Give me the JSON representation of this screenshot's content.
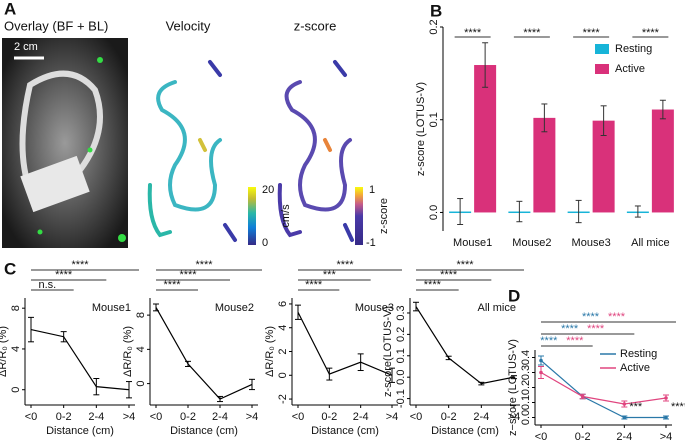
{
  "panel_labels": [
    "A",
    "B",
    "C",
    "D"
  ],
  "images": {
    "titles": [
      "Overlay (BF + BL)",
      "Velocity",
      "z-score"
    ],
    "scale_bar": "2 cm",
    "colorbars": [
      {
        "max": 20,
        "min": 0,
        "label": "cm/s"
      },
      {
        "max": 1,
        "min": -1,
        "label": "z-score"
      }
    ]
  },
  "chart_data": [
    {
      "type": "bar",
      "ylabel": "z-score (LOTUS-V)",
      "categories": [
        "Mouse1",
        "Mouse2",
        "Mouse3",
        "All mice"
      ],
      "series": [
        {
          "name": "Resting",
          "color": "#17b4d8",
          "values": [
            0.001,
            0.001,
            0.001,
            0.001
          ],
          "errors": [
            0.014,
            0.011,
            0.012,
            0.006
          ]
        },
        {
          "name": "Active",
          "color": "#d9317a",
          "values": [
            0.159,
            0.102,
            0.099,
            0.111
          ],
          "errors": [
            0.024,
            0.015,
            0.016,
            0.01
          ]
        }
      ],
      "significance": [
        "****",
        "****",
        "****",
        "****"
      ],
      "ylim": [
        -0.02,
        0.2
      ],
      "yticks": [
        {
          "value": 0,
          "label": "0.0"
        },
        0.1,
        0.2
      ],
      "legend": "upper right"
    },
    {
      "type": "line",
      "annotation": "Mouse1",
      "ylabel": "ΔR/R₀ (%)",
      "xlabel": "Distance (cm)",
      "categories": [
        "<0",
        "0-2",
        "2-4",
        ">4"
      ],
      "values": [
        5.9,
        5.2,
        0.3,
        0
      ],
      "errors": [
        1.2,
        0.5,
        0.8,
        0.8
      ],
      "ylim": [
        -1.5,
        9
      ],
      "yticks": [
        0,
        4,
        8
      ],
      "brackets": [
        "n.s.",
        "****",
        "****"
      ],
      "color": "#000000"
    },
    {
      "type": "line",
      "annotation": "Mouse2",
      "ylabel": "ΔR/R₀ (%)",
      "xlabel": "Distance (cm)",
      "categories": [
        "<0",
        "0-2",
        "2-4",
        ">4"
      ],
      "values": [
        8.9,
        2.3,
        -1.8,
        -0.1
      ],
      "errors": [
        0.4,
        0.3,
        0.3,
        0.6
      ],
      "ylim": [
        -2.5,
        10
      ],
      "yticks": [
        0,
        4,
        8
      ],
      "brackets": [
        "****",
        "****",
        "****"
      ],
      "color": "#000000"
    },
    {
      "type": "line",
      "annotation": "Mouse3",
      "ylabel": "ΔR/R₀ (%)",
      "xlabel": "Distance (cm)",
      "categories": [
        "<0",
        "0-2",
        "2-4",
        ">4"
      ],
      "values": [
        5.3,
        0.1,
        1.1,
        0
      ],
      "errors": [
        0.6,
        0.5,
        0.7,
        0.6
      ],
      "ylim": [
        -2.5,
        6.5
      ],
      "yticks": [
        -2,
        0,
        2,
        4,
        6
      ],
      "brackets": [
        "****",
        "***",
        "****"
      ],
      "color": "#000000"
    },
    {
      "type": "line",
      "annotation": "All mice",
      "ylabel": "z-score(LOTUS-V)",
      "xlabel": "Distance (cm)",
      "categories": [
        "<0",
        "0-2",
        "2-4",
        ">4"
      ],
      "values": [
        0.33,
        0.09,
        -0.03,
        0
      ],
      "errors": [
        0.02,
        0.008,
        0.006,
        0.007
      ],
      "ylim": [
        -0.13,
        0.37
      ],
      "yticks": [
        -0.1,
        {
          "value": 0,
          "label": "0.0"
        },
        0.1,
        0.2,
        0.3
      ],
      "brackets": [
        "****",
        "****",
        "****"
      ],
      "color": "#000000"
    },
    {
      "type": "line",
      "ylabel": "z−score (LOTUS-V)",
      "xlabel": "Distance(cm)",
      "categories": [
        "<0",
        "0-2",
        "2-4",
        ">4"
      ],
      "series": [
        {
          "name": "Resting",
          "color": "#2a78a8",
          "values": [
            0.38,
            0.14,
            0,
            0
          ],
          "errors": [
            0.03,
            0.015,
            0.01,
            0.01
          ]
        },
        {
          "name": "Active",
          "color": "#e0457f",
          "values": [
            0.3,
            0.14,
            0.09,
            0.13
          ],
          "errors": [
            0.04,
            0.015,
            0.02,
            0.02
          ]
        }
      ],
      "brackets": [
        [
          "****",
          "****"
        ],
        [
          "****",
          "****"
        ],
        [
          "****",
          "****"
        ]
      ],
      "annotations": [
        "***",
        "****"
      ],
      "ylim": [
        -0.05,
        0.45
      ],
      "yticks": [
        {
          "value": 0,
          "label": "0.0"
        },
        0.1,
        0.2,
        0.3,
        0.4
      ],
      "legend": "upper right"
    }
  ]
}
